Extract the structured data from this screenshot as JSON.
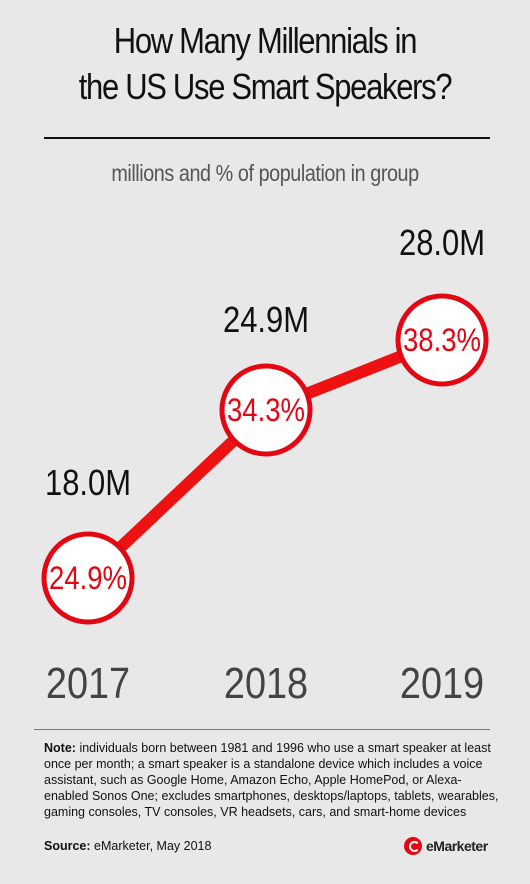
{
  "chart_data": {
    "type": "line",
    "title_line1": "How Many Millennials in",
    "title_line2": "the US Use Smart Speakers?",
    "subtitle": "millions and % of population in group",
    "categories": [
      "2017",
      "2018",
      "2019"
    ],
    "series": [
      {
        "values": [
          18.0,
          24.9,
          28.0
        ],
        "labels": [
          "18.0M",
          "24.9M",
          "28.0M"
        ]
      },
      {
        "values": [
          24.9,
          34.3,
          38.3
        ],
        "labels": [
          "24.9%",
          "34.3%",
          "38.3%"
        ]
      }
    ],
    "grid": false,
    "legend": "none"
  },
  "colors": {
    "line": "#ee1111",
    "circle_border": "#e30613",
    "circle_fill": "#ffffff",
    "pct_text": "#e30613",
    "value_text": "#111111",
    "year_text": "#444444",
    "background": "#e8e8e8"
  },
  "note": {
    "label": "Note:",
    "text": "individuals born between 1981 and 1996 who use a smart speaker at least once per month; a smart speaker is a standalone device which includes a voice assistant, such as Google Home, Amazon Echo, Apple HomePod, or Alexa-enabled Sonos One; excludes smartphones, desktops/laptops, tablets, wearables, gaming consoles, TV consoles, VR headsets, cars, and smart-home devices"
  },
  "source": {
    "label": "Source:",
    "text": "eMarketer, May 2018"
  },
  "logo": {
    "icon": "emarketer-logo-icon",
    "text": "eMarketer"
  }
}
